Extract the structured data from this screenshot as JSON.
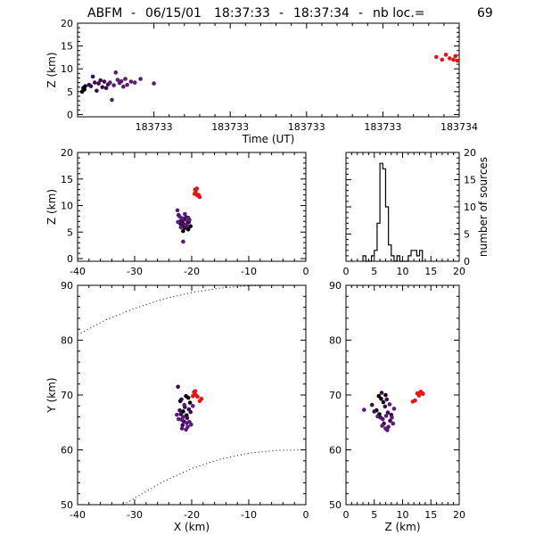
{
  "title": {
    "station": "ABFM",
    "sep1": "-",
    "date": "06/15/01",
    "time_start": "18:37:33",
    "sep2": "-",
    "time_end": "18:37:34",
    "sep3": "-",
    "count_label": "nb loc.=",
    "count": "69"
  },
  "colors": {
    "early": "#3d0a52",
    "mid": "#5a1a7a",
    "late": "#ee1111",
    "black": "#000000"
  },
  "chart_data": [
    {
      "id": "time-height",
      "type": "scatter",
      "xlabel": "Time (UT)",
      "ylabel": "Z (km)",
      "xlim": [
        0,
        1
      ],
      "ylim": [
        -0.5,
        20
      ],
      "xticks": [
        0.2,
        0.4,
        0.6,
        0.8,
        1.0
      ],
      "xtick_labels": [
        "183733",
        "183733",
        "183733",
        "183733",
        "183734"
      ],
      "yticks": [
        0,
        5,
        10,
        15,
        20
      ],
      "ytick_labels": [
        "0",
        "5",
        "10",
        "15",
        "20"
      ],
      "series": [
        {
          "color": "#000000",
          "points": [
            [
              0.015,
              5.8
            ],
            [
              0.018,
              5.5
            ],
            [
              0.02,
              6.2
            ],
            [
              0.012,
              5.0
            ]
          ]
        },
        {
          "color": "#3d0a52",
          "points": [
            [
              0.03,
              6.5
            ],
            [
              0.035,
              6.2
            ],
            [
              0.04,
              8.3
            ],
            [
              0.045,
              7.0
            ],
            [
              0.05,
              5.2
            ],
            [
              0.055,
              6.8
            ],
            [
              0.06,
              7.5
            ],
            [
              0.065,
              6.0
            ],
            [
              0.07,
              7.2
            ],
            [
              0.075,
              5.8
            ],
            [
              0.08,
              6.6
            ]
          ]
        },
        {
          "color": "#5a1a7a",
          "points": [
            [
              0.085,
              7.0
            ],
            [
              0.09,
              3.2
            ],
            [
              0.095,
              6.4
            ],
            [
              0.1,
              9.2
            ],
            [
              0.105,
              7.6
            ],
            [
              0.11,
              6.9
            ],
            [
              0.115,
              7.3
            ],
            [
              0.12,
              6.1
            ],
            [
              0.125,
              7.8
            ],
            [
              0.13,
              6.5
            ],
            [
              0.14,
              7.2
            ],
            [
              0.15,
              7.0
            ],
            [
              0.165,
              7.8
            ],
            [
              0.2,
              6.8
            ]
          ]
        },
        {
          "color": "#ee1111",
          "points": [
            [
              0.94,
              12.6
            ],
            [
              0.955,
              12.0
            ],
            [
              0.965,
              13.1
            ],
            [
              0.975,
              12.3
            ],
            [
              0.985,
              12.0
            ],
            [
              0.99,
              12.8
            ],
            [
              0.995,
              11.8
            ]
          ]
        }
      ]
    },
    {
      "id": "xz-projection",
      "type": "scatter",
      "ylabel": "Z (km)",
      "xlim": [
        -40,
        0
      ],
      "ylim": [
        -0.5,
        20
      ],
      "xticks": [
        -40,
        -30,
        -20,
        -10,
        0
      ],
      "yticks": [
        0,
        5,
        10,
        15,
        20
      ],
      "series": [
        {
          "color": "#000000",
          "points": [
            [
              -21.2,
              5.8
            ],
            [
              -21.5,
              5.2
            ],
            [
              -20.2,
              6.1
            ],
            [
              -21.8,
              6.5
            ],
            [
              -20.6,
              5.5
            ]
          ]
        },
        {
          "color": "#3d0a52",
          "points": [
            [
              -21.9,
              7.1
            ],
            [
              -21.6,
              6.8
            ],
            [
              -21.3,
              7.4
            ],
            [
              -20.9,
              6.3
            ],
            [
              -22.3,
              8.2
            ],
            [
              -21.0,
              7.8
            ],
            [
              -20.7,
              7.0
            ],
            [
              -21.4,
              6.0
            ],
            [
              -22.0,
              6.6
            ],
            [
              -20.5,
              6.9
            ]
          ]
        },
        {
          "color": "#5a1a7a",
          "points": [
            [
              -21.1,
              6.4
            ],
            [
              -22.5,
              9.1
            ],
            [
              -21.7,
              7.6
            ],
            [
              -20.4,
              7.3
            ],
            [
              -21.5,
              3.2
            ],
            [
              -22.1,
              7.9
            ],
            [
              -20.8,
              6.2
            ],
            [
              -21.2,
              8.4
            ],
            [
              -20.6,
              7.7
            ],
            [
              -22.4,
              6.9
            ],
            [
              -21.9,
              5.9
            ]
          ]
        },
        {
          "color": "#ee1111",
          "points": [
            [
              -19.4,
              13.0
            ],
            [
              -19.3,
              12.6
            ],
            [
              -19.0,
              11.9
            ],
            [
              -18.6,
              11.6
            ],
            [
              -19.5,
              12.2
            ],
            [
              -19.1,
              13.2
            ],
            [
              -18.8,
              12.0
            ]
          ]
        }
      ]
    },
    {
      "id": "height-histogram",
      "type": "bar",
      "ylabel": "number of sources",
      "xlim": [
        0,
        20
      ],
      "ylim": [
        0,
        20
      ],
      "xticks": [
        0,
        5,
        10,
        15,
        20
      ],
      "yticks": [
        0,
        5,
        10,
        15,
        20
      ],
      "bin_width": 0.5,
      "bins_start": [
        3.0,
        3.5,
        4.0,
        4.5,
        5.0,
        5.5,
        6.0,
        6.5,
        7.0,
        7.5,
        8.0,
        8.5,
        9.0,
        9.5,
        10.0,
        10.5,
        11.0,
        11.5,
        12.0,
        12.5,
        13.0
      ],
      "values": [
        1,
        0,
        0,
        1,
        2,
        7,
        18,
        17,
        10,
        3,
        1,
        0,
        1,
        0,
        0,
        0,
        1,
        2,
        2,
        1,
        2
      ]
    },
    {
      "id": "plan-view",
      "type": "scatter",
      "xlabel": "X (km)",
      "ylabel": "Y (km)",
      "xlim": [
        -40,
        0
      ],
      "ylim": [
        50,
        90
      ],
      "xticks": [
        -40,
        -30,
        -20,
        -10,
        0
      ],
      "yticks": [
        50,
        60,
        70,
        80,
        90
      ],
      "range_rings": [
        {
          "points": [
            [
              -40,
              81.0
            ],
            [
              -35,
              83.7
            ],
            [
              -30,
              85.8
            ],
            [
              -25,
              87.5
            ],
            [
              -20,
              88.7
            ],
            [
              -15,
              89.5
            ],
            [
              -10,
              89.9
            ],
            [
              -5,
              90.0
            ],
            [
              0,
              90.0
            ]
          ]
        },
        {
          "points": [
            [
              -32,
              50.0
            ],
            [
              -30,
              51.2
            ],
            [
              -25,
              54.2
            ],
            [
              -20,
              56.6
            ],
            [
              -15,
              58.3
            ],
            [
              -10,
              59.4
            ],
            [
              -5,
              59.9
            ],
            [
              0,
              60.0
            ]
          ]
        }
      ],
      "series": [
        {
          "color": "#000000",
          "points": [
            [
              -21.0,
              69.8
            ],
            [
              -20.6,
              69.5
            ],
            [
              -21.5,
              67.0
            ],
            [
              -20.3,
              68.6
            ],
            [
              -22.0,
              68.9
            ],
            [
              -20.9,
              66.3
            ]
          ]
        },
        {
          "color": "#3d0a52",
          "points": [
            [
              -22.4,
              71.5
            ],
            [
              -21.8,
              69.2
            ],
            [
              -21.2,
              67.8
            ],
            [
              -20.5,
              67.4
            ],
            [
              -21.9,
              66.5
            ],
            [
              -20.8,
              65.8
            ],
            [
              -21.4,
              65.2
            ],
            [
              -20.2,
              66.9
            ],
            [
              -22.1,
              67.2
            ],
            [
              -21.6,
              64.5
            ]
          ]
        },
        {
          "color": "#5a1a7a",
          "points": [
            [
              -21.3,
              68.2
            ],
            [
              -20.7,
              64.2
            ],
            [
              -20.1,
              64.6
            ],
            [
              -21.7,
              63.9
            ],
            [
              -22.3,
              65.6
            ],
            [
              -20.4,
              65.1
            ],
            [
              -21.0,
              63.7
            ],
            [
              -22.6,
              66.4
            ],
            [
              -21.5,
              66.0
            ],
            [
              -20.9,
              64.9
            ],
            [
              -19.8,
              68.0
            ],
            [
              -21.8,
              65.5
            ]
          ]
        },
        {
          "color": "#ee1111",
          "points": [
            [
              -19.6,
              70.5
            ],
            [
              -19.3,
              70.0
            ],
            [
              -19.0,
              69.7
            ],
            [
              -18.6,
              68.9
            ],
            [
              -19.4,
              70.7
            ],
            [
              -18.3,
              69.3
            ],
            [
              -19.8,
              69.8
            ]
          ]
        }
      ]
    },
    {
      "id": "zy-projection",
      "type": "scatter",
      "xlabel": "Z (km)",
      "xlim": [
        0,
        20
      ],
      "ylim": [
        50,
        90
      ],
      "xticks": [
        0,
        5,
        10,
        15,
        20
      ],
      "yticks": [
        50,
        60,
        70,
        80,
        90
      ],
      "series": [
        {
          "color": "#000000",
          "points": [
            [
              5.8,
              69.8
            ],
            [
              6.2,
              69.3
            ],
            [
              5.4,
              67.2
            ],
            [
              6.6,
              68.7
            ],
            [
              5.9,
              66.5
            ],
            [
              7.0,
              70.0
            ]
          ]
        },
        {
          "color": "#3d0a52",
          "points": [
            [
              6.3,
              70.4
            ],
            [
              7.2,
              69.2
            ],
            [
              5.0,
              67.0
            ],
            [
              6.9,
              67.9
            ],
            [
              7.4,
              66.8
            ],
            [
              6.1,
              65.9
            ],
            [
              7.8,
              65.3
            ],
            [
              6.7,
              64.8
            ],
            [
              8.0,
              66.4
            ],
            [
              4.6,
              68.2
            ]
          ]
        },
        {
          "color": "#5a1a7a",
          "points": [
            [
              3.2,
              67.3
            ],
            [
              7.5,
              64.2
            ],
            [
              8.3,
              64.8
            ],
            [
              7.0,
              63.9
            ],
            [
              6.5,
              65.6
            ],
            [
              8.1,
              65.9
            ],
            [
              7.3,
              63.6
            ],
            [
              5.6,
              66.1
            ],
            [
              7.7,
              68.3
            ],
            [
              6.4,
              64.4
            ],
            [
              8.5,
              67.5
            ],
            [
              7.1,
              66.2
            ]
          ]
        },
        {
          "color": "#ee1111",
          "points": [
            [
              12.2,
              69.0
            ],
            [
              12.6,
              70.3
            ],
            [
              13.2,
              70.6
            ],
            [
              13.6,
              70.2
            ],
            [
              11.8,
              68.8
            ],
            [
              12.9,
              69.9
            ],
            [
              13.4,
              70.4
            ]
          ]
        }
      ]
    }
  ]
}
